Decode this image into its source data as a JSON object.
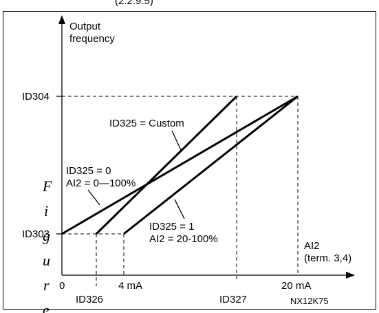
{
  "clipped_top_text": "(2.2.9.5)",
  "y_axis_label": [
    "Output",
    "frequency"
  ],
  "x_axis_label": [
    "AI2",
    "(term. 3,4)"
  ],
  "y_ticks": {
    "top": "ID304",
    "bottom": "ID303"
  },
  "x_ticks": {
    "zero": "0",
    "four_ma": "4 mA",
    "twenty_ma": "20 mA",
    "id326": "ID326",
    "id327": "ID327"
  },
  "annotations": {
    "custom": "ID325 = Custom",
    "zero_line_1": "ID325 = 0",
    "zero_line_2": "AI2 = 0—100%",
    "one_line_1": "ID325 = 1",
    "one_line_2": "AI2 = 20-100%"
  },
  "figure_code": "NX12K75",
  "side_caption_letters": [
    "F",
    "i",
    "g",
    "u",
    "r",
    "e"
  ]
}
